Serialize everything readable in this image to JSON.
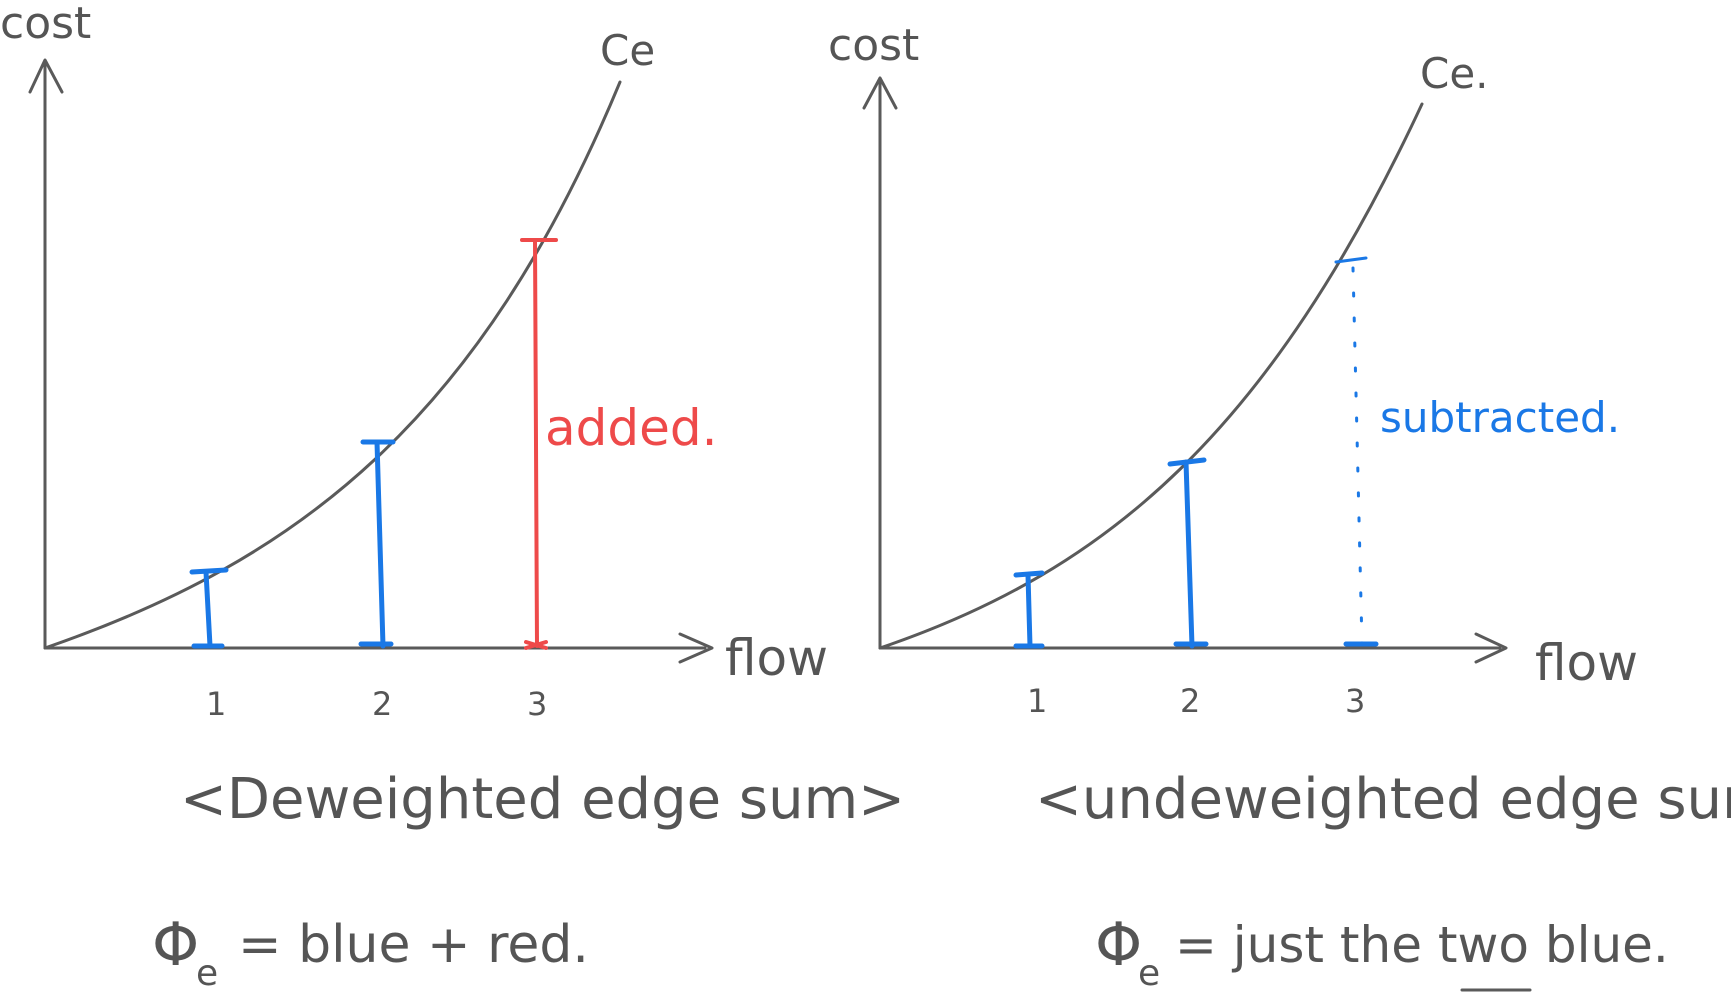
{
  "left_diagram": {
    "y_axis_label": "cost",
    "curve_label": "Ce",
    "x_axis_label": "flow",
    "ticks": [
      "1",
      "2",
      "3"
    ],
    "annotation": "added.",
    "title": "<Deweighted edge sum>",
    "formula_symbol": "Φ",
    "formula_subscript": "e",
    "formula_text": "= blue + red."
  },
  "right_diagram": {
    "y_axis_label": "cost",
    "curve_label": "Ce.",
    "x_axis_label": "flow",
    "ticks": [
      "1",
      "2",
      "3"
    ],
    "annotation": "subtracted.",
    "title": "<undeweighted edge sum>.",
    "formula_symbol": "Φ",
    "formula_subscript": "e",
    "formula_text": "= just the two blue."
  },
  "colors": {
    "ink": "#5a5a5a",
    "blue": "#1a78e6",
    "red": "#ee4a4a"
  }
}
